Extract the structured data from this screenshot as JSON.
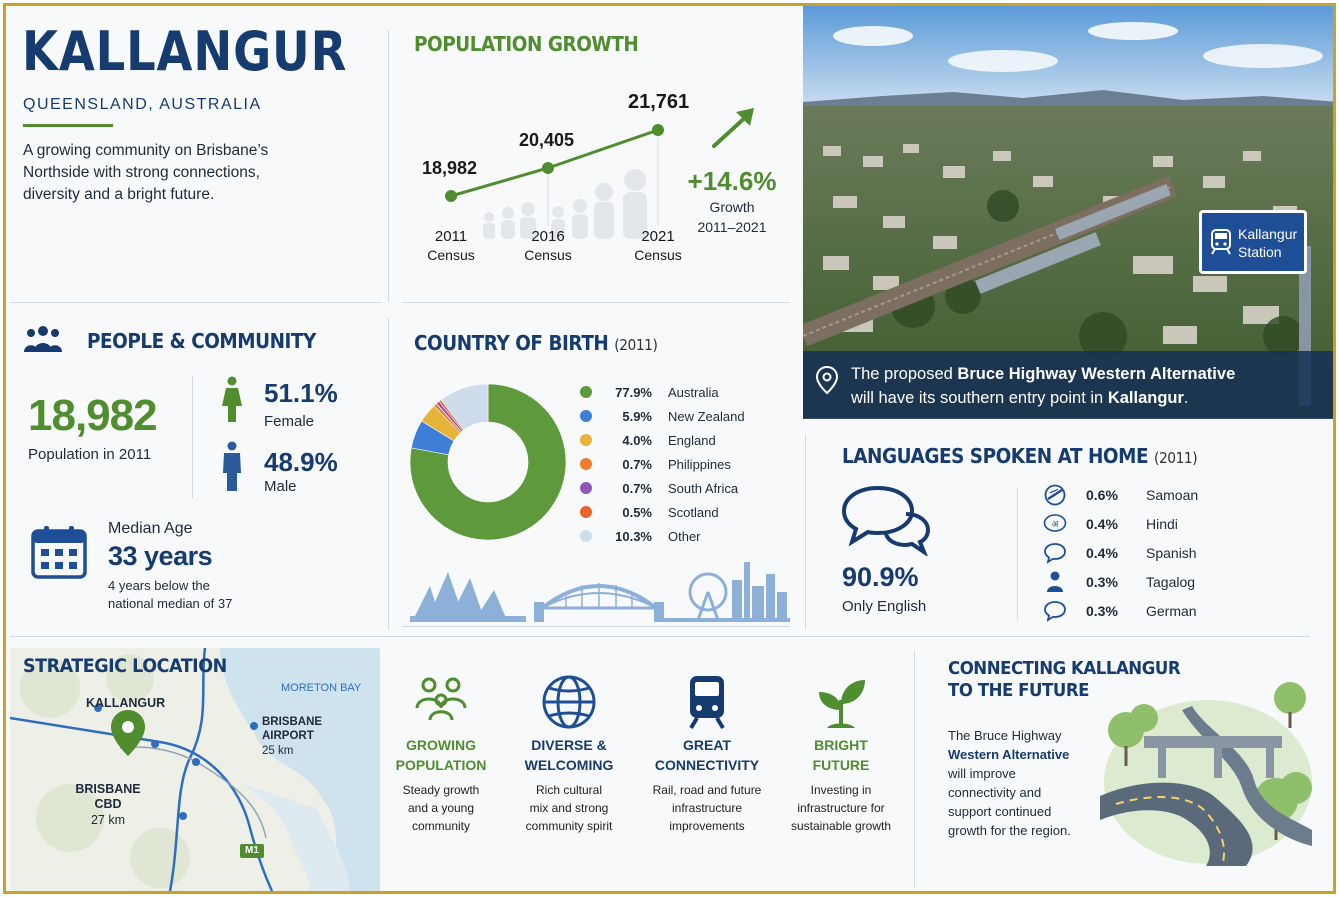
{
  "header": {
    "town": "KALLANGUR",
    "region": "QUEENSLAND, AUSTRALIA",
    "intro": [
      "A growing community on Brisbane’s",
      "Northside with strong connections,",
      "diversity and a bright future."
    ]
  },
  "population_growth": {
    "title": "POPULATION GROWTH",
    "points": [
      {
        "value": "18,982",
        "year": "2011",
        "label": "Census"
      },
      {
        "value": "20,405",
        "year": "2016",
        "label": "Census"
      },
      {
        "value": "21,761",
        "year": "2021",
        "label": "Census"
      }
    ],
    "growth_pct": "+14.6%",
    "growth_label": "Growth",
    "growth_range": "2011–2021"
  },
  "photo": {
    "sign_line1": "Kallangur",
    "sign_line2": "Station",
    "caption_line1_pre": "The proposed ",
    "caption_line1_bold": "Bruce Highway Western Alternative",
    "caption_line2_pre": "will have its southern entry point in ",
    "caption_line2_bold": "Kallangur",
    "caption_line2_post": "."
  },
  "people": {
    "title": "PEOPLE & COMMUNITY",
    "population": "18,982",
    "population_label": "Population in 2011",
    "female_pct": "51.1%",
    "female_label": "Female",
    "male_pct": "48.9%",
    "male_label": "Male",
    "median_title": "Median Age",
    "median_value": "33 years",
    "median_note_1": "4 years below the",
    "median_note_2": "national median of 37"
  },
  "birth": {
    "title": "COUNTRY OF BIRTH",
    "year": "(2011)",
    "items": [
      {
        "pct": "77.9%",
        "name": "Australia",
        "value": 77.9,
        "color": "#5e9a3c"
      },
      {
        "pct": "5.9%",
        "name": "New Zealand",
        "value": 5.9,
        "color": "#3d7fd6"
      },
      {
        "pct": "4.0%",
        "name": "England",
        "value": 4.0,
        "color": "#e6b43a"
      },
      {
        "pct": "0.7%",
        "name": "Philippines",
        "value": 0.7,
        "color": "#ef7b2e"
      },
      {
        "pct": "0.7%",
        "name": "South Africa",
        "value": 0.7,
        "color": "#8e57b5"
      },
      {
        "pct": "0.5%",
        "name": "Scotland",
        "value": 0.5,
        "color": "#e8642a"
      },
      {
        "pct": "10.3%",
        "name": "Other",
        "value": 10.3,
        "color": "#cfdceb"
      }
    ]
  },
  "languages": {
    "title": "LANGUAGES SPOKEN AT HOME",
    "year": "(2011)",
    "english_pct": "90.9%",
    "english_label": "Only English",
    "items": [
      {
        "pct": "0.6%",
        "name": "Samoan",
        "icon": "samoan-icon"
      },
      {
        "pct": "0.4%",
        "name": "Hindi",
        "icon": "hindi-icon",
        "glyph": "अ"
      },
      {
        "pct": "0.4%",
        "name": "Spanish",
        "icon": "speech-bubble-icon"
      },
      {
        "pct": "0.3%",
        "name": "Tagalog",
        "icon": "person-icon"
      },
      {
        "pct": "0.3%",
        "name": "German",
        "icon": "speech-bubble-icon"
      }
    ]
  },
  "location": {
    "title": "STRATEGIC LOCATION",
    "water": "MORETON BAY",
    "town": "KALLANGUR",
    "airport_1": "BRISBANE",
    "airport_2": "AIRPORT",
    "airport_dist": "25 km",
    "cbd_1": "BRISBANE",
    "cbd_2": "CBD",
    "cbd_dist": "27 km",
    "road": "M1"
  },
  "features": [
    {
      "title_1": "GROWING",
      "title_2": "POPULATION",
      "desc": [
        "Steady growth",
        "and a young",
        "community"
      ],
      "icon": "people-icon"
    },
    {
      "title_1": "DIVERSE &",
      "title_2": "WELCOMING",
      "desc": [
        "Rich cultural",
        "mix and strong",
        "community spirit"
      ],
      "icon": "globe-icon"
    },
    {
      "title_1": "GREAT",
      "title_2": "CONNECTIVITY",
      "desc": [
        "Rail, road and future",
        "infrastructure",
        "improvements"
      ],
      "icon": "train-icon"
    },
    {
      "title_1": "BRIGHT",
      "title_2": "FUTURE",
      "desc": [
        "Investing in",
        "infrastructure for",
        "sustainable growth"
      ],
      "icon": "sprout-icon"
    }
  ],
  "future": {
    "title_1": "CONNECTING KALLANGUR",
    "title_2": "TO THE FUTURE",
    "text_1a": "The Bruce Highway",
    "text_2b": "Western Alternative",
    "text_3": "will improve",
    "text_4": "connectivity and",
    "text_5": "support continued",
    "text_6": "growth for the region."
  },
  "colors": {
    "navy": "#163b6e",
    "green": "#4f8d2f",
    "border": "#c9a227"
  }
}
